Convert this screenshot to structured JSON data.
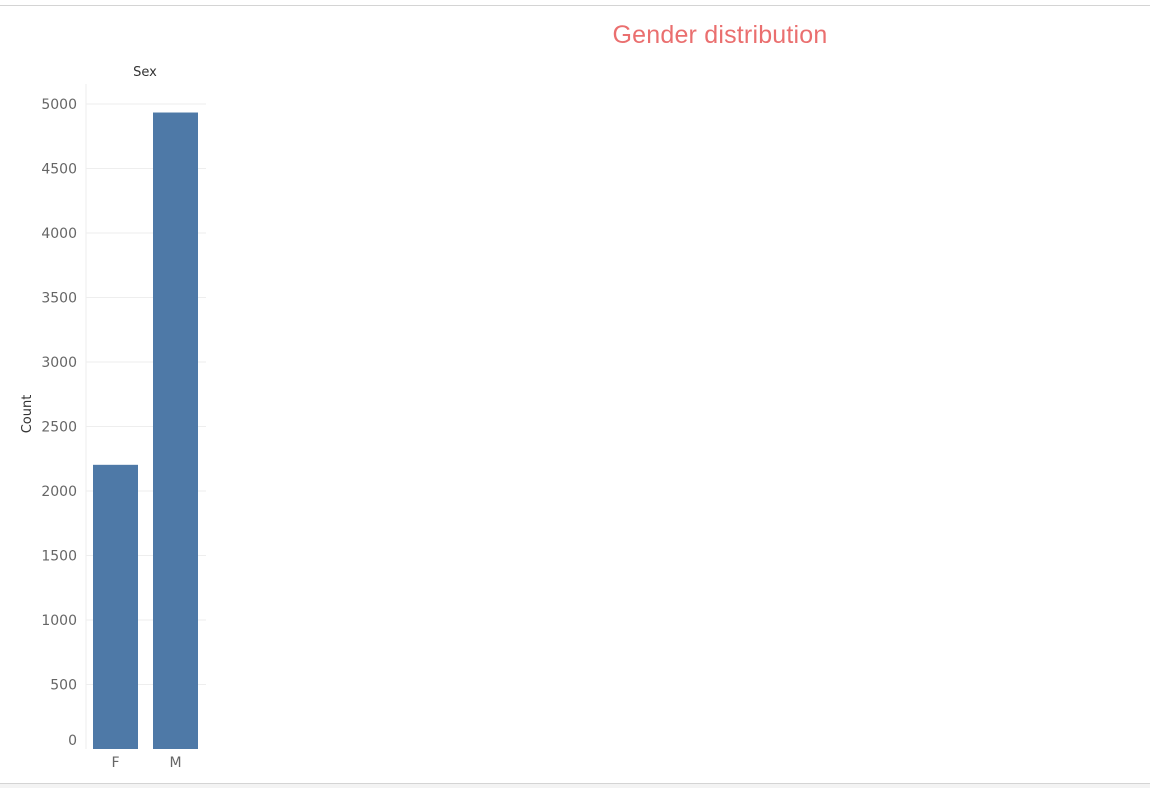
{
  "title_color": "#ea6f6f",
  "bar_color": "#4e79a7",
  "chart_data": {
    "type": "bar",
    "title": "Gender distribution",
    "column_header": "Sex",
    "xlabel": "",
    "ylabel": "Count",
    "categories": [
      "F",
      "M"
    ],
    "values": [
      2203,
      4934
    ],
    "ylim": [
      0,
      5000
    ],
    "yticks": [
      0,
      500,
      1000,
      1500,
      2000,
      2500,
      3000,
      3500,
      4000,
      4500,
      5000
    ],
    "grid": true,
    "legend": "none"
  }
}
